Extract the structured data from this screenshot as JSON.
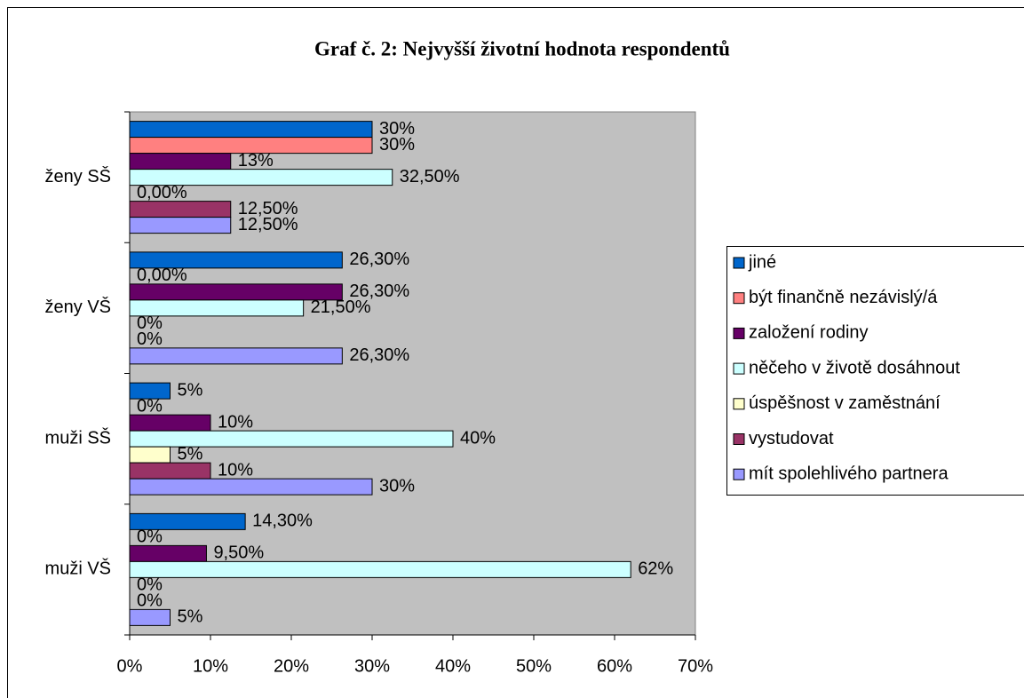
{
  "chart_data": {
    "type": "bar",
    "orientation": "horizontal",
    "title": "Graf č. 2: Nejvyšší životní hodnota respondentů",
    "categories": [
      "ženy SŠ",
      "ženy VŠ",
      "muži SŠ",
      "muži VŠ"
    ],
    "series": [
      {
        "name": "jiné",
        "color": "#0066cc",
        "values": [
          30,
          26.3,
          5,
          14.3
        ],
        "value_labels": [
          "30%",
          "26,30%",
          "5%",
          "14,30%"
        ]
      },
      {
        "name": "být finančně nezávislý/á",
        "color": "#ff8080",
        "values": [
          30,
          0,
          0,
          0
        ],
        "value_labels": [
          "30%",
          "0,00%",
          "0%",
          "0%"
        ]
      },
      {
        "name": "založení rodiny",
        "color": "#660066",
        "values": [
          12.5,
          26.3,
          10,
          9.5
        ],
        "value_labels": [
          "13%",
          "26,30%",
          "10%",
          "9,50%"
        ]
      },
      {
        "name": "něčeho v životě dosáhnout",
        "color": "#ccffff",
        "values": [
          32.5,
          21.5,
          40,
          62
        ],
        "value_labels": [
          "32,50%",
          "21,50%",
          "40%",
          "62%"
        ]
      },
      {
        "name": "úspěšnost v zaměstnání",
        "color": "#ffffcc",
        "values": [
          0,
          0,
          5,
          0
        ],
        "value_labels": [
          "0,00%",
          "0%",
          "5%",
          "0%"
        ]
      },
      {
        "name": "vystudovat",
        "color": "#993366",
        "values": [
          12.5,
          0,
          10,
          0
        ],
        "value_labels": [
          "12,50%",
          "0%",
          "10%",
          "0%"
        ]
      },
      {
        "name": "mít spolehlivého partnera",
        "color": "#9999ff",
        "values": [
          12.5,
          26.3,
          30,
          5
        ],
        "value_labels": [
          "12,50%",
          "26,30%",
          "30%",
          "5%"
        ]
      }
    ],
    "xlim": [
      0,
      70
    ],
    "xticks": [
      {
        "value": 0,
        "label": "0%"
      },
      {
        "value": 10,
        "label": "10%"
      },
      {
        "value": 20,
        "label": "20%"
      },
      {
        "value": 30,
        "label": "30%"
      },
      {
        "value": 40,
        "label": "40%"
      },
      {
        "value": 50,
        "label": "50%"
      },
      {
        "value": 60,
        "label": "60%"
      },
      {
        "value": 70,
        "label": "70%"
      }
    ],
    "legend": "right"
  }
}
